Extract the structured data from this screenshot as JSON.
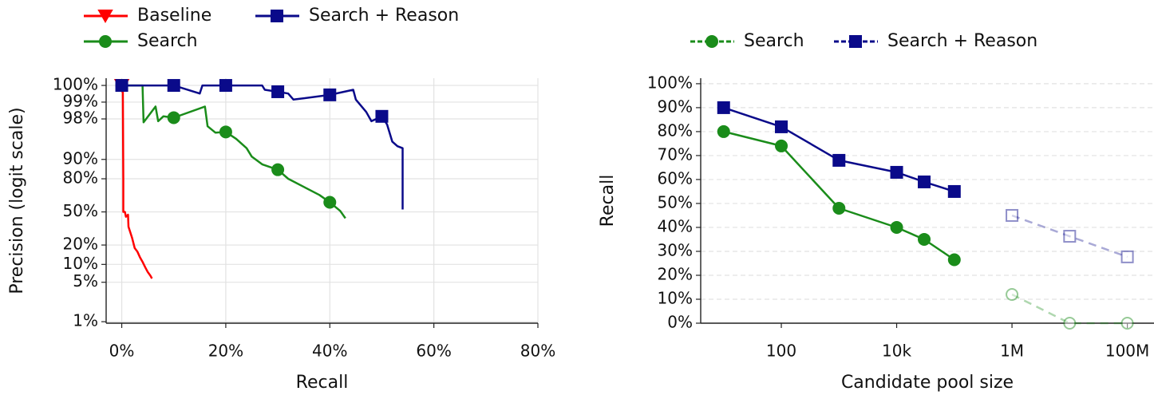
{
  "chart_data": [
    {
      "type": "line",
      "xlabel": "Recall",
      "ylabel": "Precision (logit scale)",
      "yscale": "logit",
      "xlim": [
        -3,
        80
      ],
      "ylim": [
        0.94,
        99.63
      ],
      "xticks": [
        {
          "value": 0,
          "label": "0%"
        },
        {
          "value": 20,
          "label": "20%"
        },
        {
          "value": 40,
          "label": "40%"
        },
        {
          "value": 60,
          "label": "60%"
        },
        {
          "value": 80,
          "label": "80%"
        }
      ],
      "yticks": [
        {
          "value": 1,
          "label": "1%"
        },
        {
          "value": 5,
          "label": "5%"
        },
        {
          "value": 10,
          "label": "10%"
        },
        {
          "value": 20,
          "label": "20%"
        },
        {
          "value": 50,
          "label": "50%"
        },
        {
          "value": 80,
          "label": "80%"
        },
        {
          "value": 90,
          "label": "90%"
        },
        {
          "value": 98,
          "label": "98%"
        },
        {
          "value": 99,
          "label": "99%"
        },
        {
          "value": 99.5,
          "label": "100%"
        }
      ],
      "grid": "both",
      "grid_style": "solid",
      "legend": "top",
      "series": [
        {
          "name": "Baseline",
          "color": "#ff0000",
          "marker": "v",
          "x": [
            0,
            0.2,
            0.3,
            0.3,
            0.6,
            0.8,
            1.2,
            1.3,
            1.5,
            2,
            2.5,
            3,
            3.5,
            4,
            4.5,
            5,
            5.5,
            5.8
          ],
          "values": [
            99.5,
            99.5,
            80,
            50,
            50,
            45,
            47,
            35,
            32,
            25,
            18,
            16,
            13,
            11,
            9,
            7.5,
            6.5,
            5.8
          ]
        },
        {
          "name": "Search",
          "color": "#1a8c1a",
          "marker": "o",
          "x": [
            0,
            4,
            4.2,
            6.5,
            7,
            8,
            10,
            16,
            16.5,
            18,
            20,
            22,
            24,
            25,
            27,
            30,
            32,
            35,
            38,
            40,
            42,
            43
          ],
          "values": [
            99.5,
            99.5,
            97.7,
            98.8,
            97.8,
            98.2,
            98.1,
            98.8,
            97.3,
            96.5,
            96.6,
            95.5,
            93.5,
            91,
            88,
            85.4,
            80,
            74,
            67,
            59.9,
            51,
            43.4
          ]
        },
        {
          "name": "Search + Reason",
          "color": "#0a0a8a",
          "marker": "s",
          "x": [
            0,
            10,
            15,
            15.5,
            20,
            27,
            27.5,
            30,
            32,
            33,
            40,
            44.5,
            45,
            47,
            48,
            50,
            51,
            52,
            53,
            54,
            54
          ],
          "values": [
            99.5,
            99.5,
            99.3,
            99.5,
            99.5,
            99.5,
            99.4,
            99.35,
            99.3,
            99.1,
            99.26,
            99.4,
            99.1,
            98.5,
            97.8,
            98.2,
            97.5,
            95,
            94,
            93.5,
            52.5
          ]
        }
      ]
    },
    {
      "type": "line",
      "xlabel": "Candidate pool size",
      "ylabel": "Recall",
      "xscale": "log",
      "xlim": [
        4,
        290000000
      ],
      "ylim": [
        0,
        102.3
      ],
      "xticks": [
        100,
        {
          "value": 10000,
          "label": "10k"
        },
        {
          "value": 1000000,
          "label": "1M"
        },
        {
          "value": 100000000,
          "label": "100M"
        }
      ],
      "yticks": [
        {
          "value": 0,
          "label": "0%"
        },
        {
          "value": 10,
          "label": "10%"
        },
        {
          "value": 20,
          "label": "20%"
        },
        {
          "value": 30,
          "label": "30%"
        },
        {
          "value": 40,
          "label": "40%"
        },
        {
          "value": 50,
          "label": "50%"
        },
        {
          "value": 60,
          "label": "60%"
        },
        {
          "value": 70,
          "label": "70%"
        },
        {
          "value": 80,
          "label": "80%"
        },
        {
          "value": 90,
          "label": "90%"
        },
        {
          "value": 100,
          "label": "100%"
        }
      ],
      "grid": "y",
      "grid_style": "dashed",
      "legend": "top",
      "x": [
        10,
        100,
        1000,
        10000,
        30000,
        100000,
        1000000,
        10000000,
        100000000
      ],
      "series": [
        {
          "name": "Search",
          "color": "#1a8c1a",
          "marker": "o",
          "values": [
            80,
            74,
            48,
            40,
            35,
            26.5,
            null,
            null,
            null
          ],
          "projected": [
            80,
            null,
            null,
            null,
            null,
            null,
            12,
            0,
            0
          ]
        },
        {
          "name": "Search + Reason",
          "color": "#0a0a8a",
          "marker": "s",
          "values": [
            90,
            82,
            68,
            63,
            59,
            55,
            null,
            null,
            null
          ],
          "projected": [
            90,
            null,
            null,
            null,
            null,
            null,
            45,
            36.3,
            27.7
          ]
        }
      ]
    }
  ]
}
